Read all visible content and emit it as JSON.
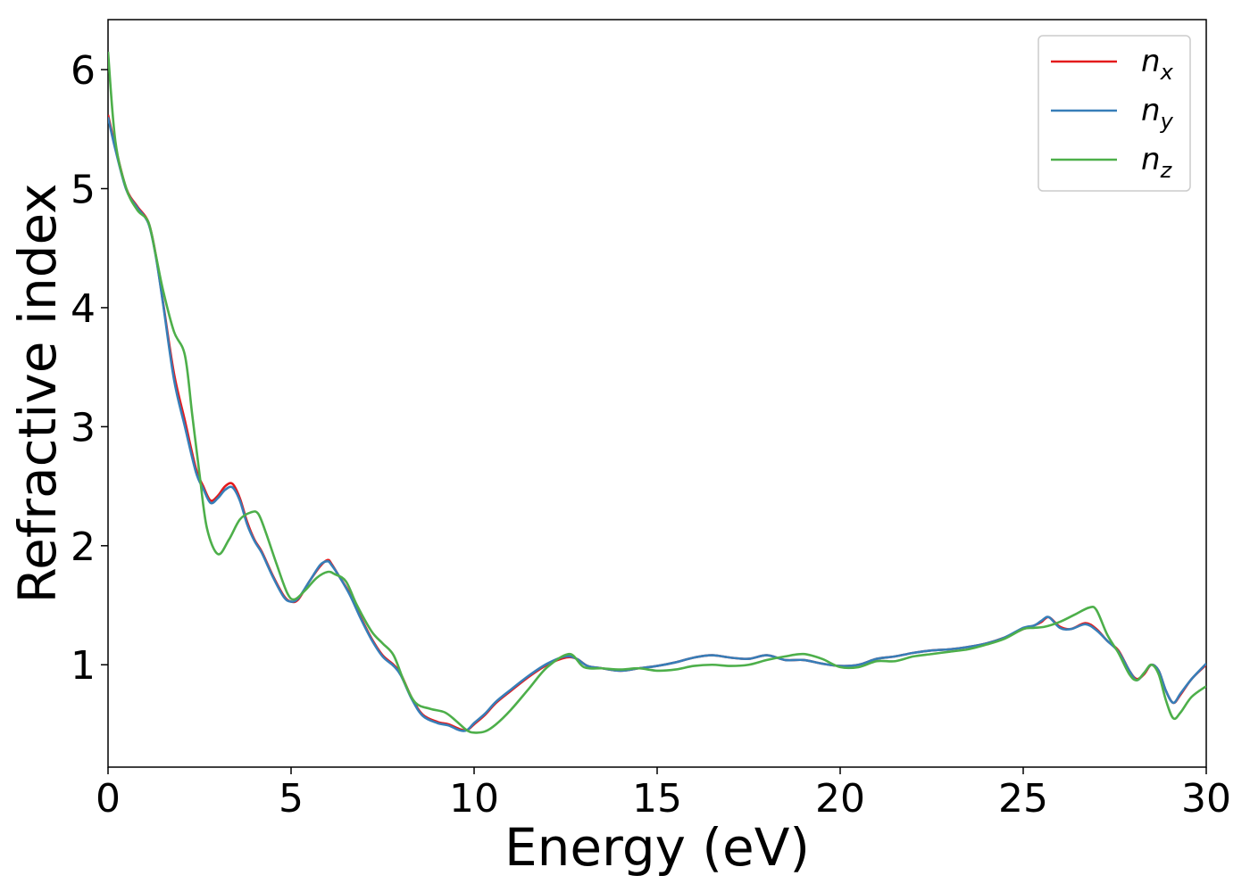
{
  "chart_data": {
    "type": "line",
    "title": "",
    "xlabel": "Energy (eV)",
    "ylabel": "Refractive index",
    "xlim": [
      0,
      30
    ],
    "ylim": [
      0.14,
      6.42
    ],
    "xticks": [
      0,
      5,
      10,
      15,
      20,
      25,
      30
    ],
    "yticks": [
      1,
      2,
      3,
      4,
      5,
      6
    ],
    "xtick_labels": [
      "0",
      "5",
      "10",
      "15",
      "20",
      "25",
      "30"
    ],
    "ytick_labels": [
      "1",
      "2",
      "3",
      "4",
      "5",
      "6"
    ],
    "grid": false,
    "legend": {
      "position": "top-right"
    },
    "series": [
      {
        "name": "n",
        "subscript": "x",
        "color": "#e41a1c",
        "x": [
          0,
          0.2,
          0.5,
          0.8,
          1.1,
          1.3,
          1.5,
          1.8,
          2.1,
          2.4,
          2.6,
          2.8,
          3.0,
          3.2,
          3.4,
          3.6,
          3.8,
          4.0,
          4.2,
          4.5,
          4.8,
          5.0,
          5.2,
          5.5,
          5.8,
          6.0,
          6.1,
          6.3,
          6.6,
          6.9,
          7.2,
          7.5,
          7.8,
          8.0,
          8.3,
          8.6,
          9.0,
          9.3,
          9.6,
          9.8,
          10.0,
          10.3,
          10.6,
          11.0,
          11.5,
          12.0,
          12.5,
          12.8,
          13.1,
          13.5,
          14.0,
          14.5,
          15.0,
          15.5,
          16.0,
          16.5,
          17.0,
          17.5,
          18.0,
          18.5,
          19.0,
          19.5,
          20.0,
          20.5,
          21.0,
          21.5,
          22.0,
          22.5,
          23.0,
          23.5,
          24.0,
          24.5,
          25.0,
          25.3,
          25.5,
          25.7,
          26.0,
          26.3,
          26.7,
          27.0,
          27.3,
          27.6,
          27.9,
          28.1,
          28.3,
          28.5,
          28.7,
          28.9,
          29.1,
          29.3,
          29.6,
          30.0
        ],
        "values": [
          5.62,
          5.35,
          5.0,
          4.85,
          4.72,
          4.45,
          4.05,
          3.45,
          3.05,
          2.65,
          2.5,
          2.38,
          2.42,
          2.5,
          2.52,
          2.4,
          2.2,
          2.05,
          1.95,
          1.75,
          1.58,
          1.53,
          1.55,
          1.7,
          1.83,
          1.88,
          1.85,
          1.75,
          1.6,
          1.4,
          1.22,
          1.08,
          1.0,
          0.92,
          0.72,
          0.58,
          0.52,
          0.5,
          0.46,
          0.45,
          0.5,
          0.58,
          0.68,
          0.78,
          0.9,
          1.0,
          1.06,
          1.05,
          0.99,
          0.97,
          0.95,
          0.97,
          0.99,
          1.02,
          1.06,
          1.08,
          1.06,
          1.05,
          1.08,
          1.04,
          1.04,
          1.01,
          0.99,
          1.0,
          1.05,
          1.07,
          1.1,
          1.12,
          1.13,
          1.15,
          1.18,
          1.23,
          1.3,
          1.33,
          1.36,
          1.4,
          1.32,
          1.3,
          1.35,
          1.3,
          1.2,
          1.12,
          0.95,
          0.88,
          0.92,
          1.0,
          0.95,
          0.78,
          0.68,
          0.75,
          0.88,
          1.0
        ]
      },
      {
        "name": "n",
        "subscript": "y",
        "color": "#377eb8",
        "x": [
          0,
          0.2,
          0.5,
          0.8,
          1.1,
          1.3,
          1.5,
          1.8,
          2.1,
          2.4,
          2.6,
          2.8,
          3.0,
          3.2,
          3.4,
          3.6,
          3.8,
          4.0,
          4.2,
          4.5,
          4.8,
          5.0,
          5.2,
          5.5,
          5.8,
          6.0,
          6.1,
          6.3,
          6.6,
          6.9,
          7.2,
          7.5,
          7.8,
          8.0,
          8.3,
          8.6,
          9.0,
          9.3,
          9.6,
          9.8,
          10.0,
          10.3,
          10.6,
          11.0,
          11.5,
          12.0,
          12.5,
          12.8,
          13.1,
          13.5,
          14.0,
          14.5,
          15.0,
          15.5,
          16.0,
          16.5,
          17.0,
          17.5,
          18.0,
          18.5,
          19.0,
          19.5,
          20.0,
          20.5,
          21.0,
          21.5,
          22.0,
          22.5,
          23.0,
          23.5,
          24.0,
          24.5,
          25.0,
          25.3,
          25.5,
          25.7,
          26.0,
          26.3,
          26.7,
          27.0,
          27.3,
          27.6,
          27.9,
          28.1,
          28.3,
          28.5,
          28.7,
          28.9,
          29.1,
          29.3,
          29.6,
          30.0
        ],
        "values": [
          5.6,
          5.33,
          4.99,
          4.84,
          4.71,
          4.44,
          4.04,
          3.4,
          3.0,
          2.62,
          2.48,
          2.36,
          2.4,
          2.47,
          2.49,
          2.38,
          2.18,
          2.04,
          1.94,
          1.74,
          1.57,
          1.53,
          1.56,
          1.7,
          1.84,
          1.87,
          1.84,
          1.75,
          1.59,
          1.39,
          1.21,
          1.07,
          0.99,
          0.91,
          0.71,
          0.57,
          0.51,
          0.49,
          0.45,
          0.45,
          0.51,
          0.59,
          0.69,
          0.79,
          0.91,
          1.01,
          1.07,
          1.05,
          0.99,
          0.97,
          0.95,
          0.97,
          0.99,
          1.02,
          1.06,
          1.08,
          1.06,
          1.05,
          1.08,
          1.04,
          1.04,
          1.01,
          0.99,
          1.0,
          1.05,
          1.07,
          1.1,
          1.12,
          1.13,
          1.15,
          1.18,
          1.23,
          1.31,
          1.33,
          1.37,
          1.4,
          1.31,
          1.3,
          1.34,
          1.29,
          1.2,
          1.11,
          0.95,
          0.87,
          0.93,
          1.0,
          0.95,
          0.78,
          0.68,
          0.76,
          0.88,
          1.01
        ]
      },
      {
        "name": "n",
        "subscript": "z",
        "color": "#4daf4a",
        "x": [
          0,
          0.2,
          0.5,
          0.8,
          1.1,
          1.3,
          1.5,
          1.8,
          2.1,
          2.3,
          2.5,
          2.7,
          3.0,
          3.3,
          3.6,
          3.9,
          4.1,
          4.3,
          4.6,
          4.9,
          5.1,
          5.4,
          5.7,
          6.0,
          6.2,
          6.5,
          6.8,
          7.2,
          7.5,
          7.8,
          8.1,
          8.4,
          8.8,
          9.2,
          9.5,
          9.8,
          10.0,
          10.3,
          10.6,
          11.0,
          11.5,
          12.0,
          12.6,
          13.0,
          13.5,
          14.0,
          14.5,
          15.0,
          15.5,
          16.0,
          16.5,
          17.0,
          17.5,
          18.0,
          18.5,
          19.0,
          19.5,
          20.0,
          20.5,
          21.0,
          21.5,
          22.0,
          22.5,
          23.0,
          23.5,
          24.0,
          24.5,
          25.0,
          25.3,
          25.6,
          26.0,
          26.4,
          26.8,
          27.0,
          27.3,
          27.6,
          27.9,
          28.1,
          28.3,
          28.5,
          28.7,
          28.9,
          29.1,
          29.3,
          29.6,
          30.0
        ],
        "values": [
          6.15,
          5.4,
          5.0,
          4.82,
          4.72,
          4.45,
          4.15,
          3.8,
          3.6,
          3.1,
          2.6,
          2.15,
          1.93,
          2.05,
          2.22,
          2.28,
          2.27,
          2.12,
          1.85,
          1.6,
          1.55,
          1.63,
          1.73,
          1.78,
          1.76,
          1.7,
          1.5,
          1.28,
          1.18,
          1.08,
          0.85,
          0.68,
          0.63,
          0.6,
          0.53,
          0.45,
          0.43,
          0.44,
          0.5,
          0.62,
          0.8,
          0.98,
          1.09,
          0.98,
          0.97,
          0.96,
          0.97,
          0.95,
          0.96,
          0.99,
          1.0,
          0.99,
          1.0,
          1.04,
          1.07,
          1.09,
          1.05,
          0.98,
          0.98,
          1.03,
          1.03,
          1.07,
          1.09,
          1.11,
          1.13,
          1.17,
          1.22,
          1.3,
          1.31,
          1.32,
          1.36,
          1.42,
          1.48,
          1.46,
          1.25,
          1.1,
          0.92,
          0.87,
          0.93,
          1.0,
          0.92,
          0.7,
          0.55,
          0.6,
          0.73,
          0.82
        ]
      }
    ]
  }
}
